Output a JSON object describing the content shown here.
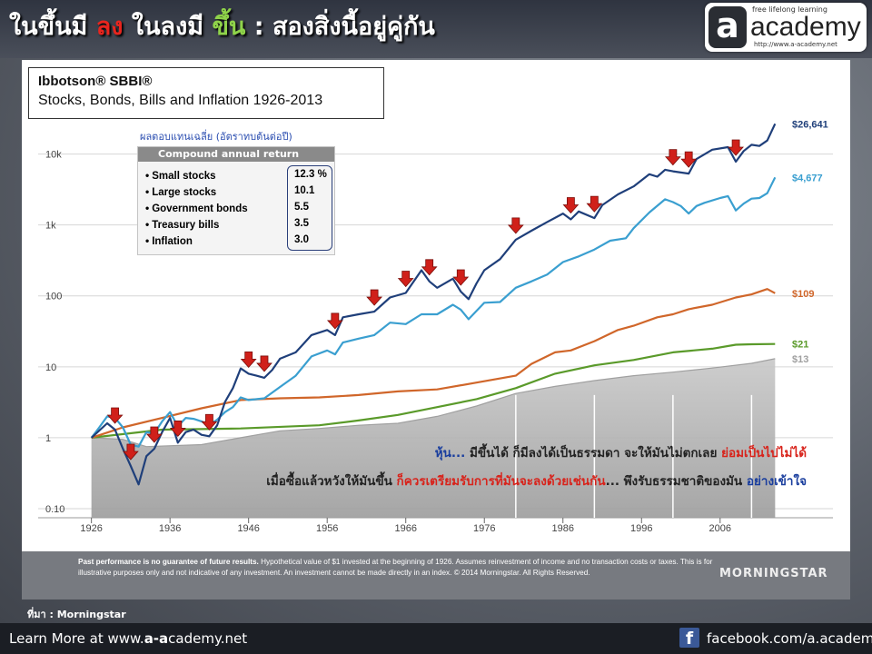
{
  "header": {
    "title_part1": "ในขึ้นมี ",
    "title_down": "ลง",
    "title_part2": " ในลงมี ",
    "title_up": "ขึ้น",
    "title_part3": " : สองสิ่งนี้อยู่คู่กัน"
  },
  "logo": {
    "letter": "a",
    "tagline": "free lifelong learning",
    "word": "academy",
    "url": "http://www.a-academy.net"
  },
  "chart_box": {
    "title": "Ibbotson® SBBI®",
    "subtitle": "Stocks, Bonds, Bills and Inflation 1926-2013"
  },
  "thai_note": "ผลตอบแทนเฉลี่ย (อัตราทบต้นต่อปี)",
  "legend": {
    "header": "Compound annual return",
    "items": [
      {
        "label": "Small stocks",
        "value": "12.3 %",
        "color": "#1f3f7a"
      },
      {
        "label": "Large stocks",
        "value": "10.1",
        "color": "#3a9fd0"
      },
      {
        "label": "Government bonds",
        "value": "5.5",
        "color": "#d0662a"
      },
      {
        "label": "Treasury bills",
        "value": "3.5",
        "color": "#5a9a2a"
      },
      {
        "label": "Inflation",
        "value": "3.0",
        "color": "#a0a0a0"
      }
    ]
  },
  "annotations": {
    "line1_a": "หุ้น... ",
    "line1_b": "มีขึ้นได้ ก็มีลงได้เป็นธรรมดา จะให้มันไม่ตกเลย ",
    "line1_c": "ย่อมเป็นไปไม่ได้",
    "line2_a": "เมื่อซื้อแล้วหวังให้มันขึ้น ",
    "line2_b": "ก็ควรเตรียมรับการที่มันจะลงด้วยเช่นกัน",
    "line2_c": "... พึงรับธรรมชาติของมัน ",
    "line2_d": "อย่างเข้าใจ"
  },
  "disclaimer": {
    "bold": "Past performance is no guarantee of future results.",
    "text": " Hypothetical value of $1 invested at the beginning of 1926. Assumes reinvestment of income and no transaction costs or taxes. This is for illustrative purposes only and not indicative of any investment. An investment cannot be made directly in an index. © 2014 Morningstar. All Rights Reserved."
  },
  "morningstar": "MORNINGSTAR",
  "source": "ที่มา : Morningstar",
  "footer": {
    "left_prefix": "Learn More at www.",
    "left_bold": "a-a",
    "left_suffix": "cademy.net",
    "right": "facebook.com/a.academy"
  },
  "chart_data": {
    "type": "line",
    "title": "Ibbotson® SBBI® Stocks, Bonds, Bills and Inflation 1926-2013",
    "xlabel": "",
    "ylabel": "",
    "y_scale": "log",
    "ylim": [
      0.1,
      50000
    ],
    "xlim": [
      1925,
      2014
    ],
    "y_ticks": [
      0.1,
      1,
      10,
      100,
      1000,
      10000
    ],
    "y_tick_labels": [
      "0.10",
      "1",
      "10",
      "100",
      "1k",
      "10k"
    ],
    "x_ticks": [
      1926,
      1936,
      1946,
      1956,
      1966,
      1976,
      1986,
      1996,
      2006
    ],
    "x_tick_labels": [
      "1926",
      "1936",
      "1946",
      "1956",
      "1966",
      "1976",
      "1986",
      "1996",
      "2006"
    ],
    "grid": true,
    "series": [
      {
        "name": "Small stocks",
        "color": "#1f3f7a",
        "end_label": "$26,641",
        "points": [
          [
            1926,
            1
          ],
          [
            1928,
            1.6
          ],
          [
            1929,
            1.3
          ],
          [
            1930,
            0.7
          ],
          [
            1931,
            0.4
          ],
          [
            1932,
            0.22
          ],
          [
            1933,
            0.55
          ],
          [
            1934,
            0.7
          ],
          [
            1935,
            1.2
          ],
          [
            1936,
            1.9
          ],
          [
            1937,
            0.85
          ],
          [
            1938,
            1.2
          ],
          [
            1939,
            1.3
          ],
          [
            1940,
            1.1
          ],
          [
            1941,
            1.05
          ],
          [
            1942,
            1.5
          ],
          [
            1943,
            3.2
          ],
          [
            1944,
            5.0
          ],
          [
            1945,
            9.5
          ],
          [
            1946,
            8.0
          ],
          [
            1947,
            7.5
          ],
          [
            1948,
            7.0
          ],
          [
            1949,
            9.0
          ],
          [
            1950,
            13
          ],
          [
            1952,
            16
          ],
          [
            1954,
            28
          ],
          [
            1956,
            33
          ],
          [
            1957,
            28
          ],
          [
            1958,
            50
          ],
          [
            1960,
            55
          ],
          [
            1962,
            60
          ],
          [
            1964,
            95
          ],
          [
            1966,
            110
          ],
          [
            1968,
            230
          ],
          [
            1969,
            160
          ],
          [
            1970,
            130
          ],
          [
            1972,
            175
          ],
          [
            1973,
            115
          ],
          [
            1974,
            90
          ],
          [
            1975,
            150
          ],
          [
            1976,
            230
          ],
          [
            1978,
            330
          ],
          [
            1980,
            620
          ],
          [
            1982,
            830
          ],
          [
            1984,
            1100
          ],
          [
            1986,
            1450
          ],
          [
            1987,
            1200
          ],
          [
            1988,
            1550
          ],
          [
            1990,
            1250
          ],
          [
            1991,
            1900
          ],
          [
            1993,
            2700
          ],
          [
            1995,
            3500
          ],
          [
            1997,
            5200
          ],
          [
            1998,
            4800
          ],
          [
            1999,
            6000
          ],
          [
            2000,
            5700
          ],
          [
            2002,
            5300
          ],
          [
            2003,
            8500
          ],
          [
            2005,
            11500
          ],
          [
            2007,
            12500
          ],
          [
            2008,
            7800
          ],
          [
            2009,
            11000
          ],
          [
            2010,
            13500
          ],
          [
            2011,
            13000
          ],
          [
            2012,
            15500
          ],
          [
            2013,
            26641
          ]
        ]
      },
      {
        "name": "Large stocks",
        "color": "#3a9fd0",
        "end_label": "$4,677",
        "points": [
          [
            1926,
            1
          ],
          [
            1927,
            1.4
          ],
          [
            1928,
            2.0
          ],
          [
            1929,
            1.9
          ],
          [
            1930,
            1.4
          ],
          [
            1931,
            0.8
          ],
          [
            1932,
            0.75
          ],
          [
            1933,
            1.2
          ],
          [
            1934,
            1.15
          ],
          [
            1935,
            1.7
          ],
          [
            1936,
            2.3
          ],
          [
            1937,
            1.45
          ],
          [
            1938,
            1.9
          ],
          [
            1939,
            1.85
          ],
          [
            1940,
            1.7
          ],
          [
            1941,
            1.5
          ],
          [
            1942,
            1.8
          ],
          [
            1943,
            2.3
          ],
          [
            1944,
            2.7
          ],
          [
            1945,
            3.7
          ],
          [
            1946,
            3.4
          ],
          [
            1948,
            3.6
          ],
          [
            1950,
            5.2
          ],
          [
            1952,
            7.5
          ],
          [
            1954,
            14
          ],
          [
            1956,
            17
          ],
          [
            1957,
            15
          ],
          [
            1958,
            22
          ],
          [
            1960,
            25
          ],
          [
            1962,
            28
          ],
          [
            1964,
            42
          ],
          [
            1966,
            40
          ],
          [
            1968,
            55
          ],
          [
            1970,
            55
          ],
          [
            1972,
            75
          ],
          [
            1973,
            64
          ],
          [
            1974,
            47
          ],
          [
            1976,
            80
          ],
          [
            1978,
            82
          ],
          [
            1980,
            130
          ],
          [
            1982,
            160
          ],
          [
            1984,
            200
          ],
          [
            1986,
            300
          ],
          [
            1988,
            360
          ],
          [
            1990,
            450
          ],
          [
            1992,
            600
          ],
          [
            1994,
            650
          ],
          [
            1995,
            900
          ],
          [
            1997,
            1500
          ],
          [
            1999,
            2300
          ],
          [
            2000,
            2100
          ],
          [
            2001,
            1850
          ],
          [
            2002,
            1450
          ],
          [
            2003,
            1850
          ],
          [
            2004,
            2050
          ],
          [
            2006,
            2400
          ],
          [
            2007,
            2550
          ],
          [
            2008,
            1600
          ],
          [
            2009,
            2000
          ],
          [
            2010,
            2350
          ],
          [
            2011,
            2400
          ],
          [
            2012,
            2800
          ],
          [
            2013,
            4677
          ]
        ]
      },
      {
        "name": "Government bonds",
        "color": "#d0662a",
        "end_label": "$109",
        "points": [
          [
            1926,
            1
          ],
          [
            1930,
            1.4
          ],
          [
            1935,
            1.9
          ],
          [
            1940,
            2.6
          ],
          [
            1945,
            3.4
          ],
          [
            1950,
            3.6
          ],
          [
            1955,
            3.7
          ],
          [
            1960,
            4.0
          ],
          [
            1965,
            4.5
          ],
          [
            1970,
            4.8
          ],
          [
            1975,
            6.0
          ],
          [
            1980,
            7.5
          ],
          [
            1982,
            11
          ],
          [
            1985,
            16
          ],
          [
            1987,
            17
          ],
          [
            1990,
            23
          ],
          [
            1993,
            33
          ],
          [
            1995,
            38
          ],
          [
            1998,
            50
          ],
          [
            2000,
            55
          ],
          [
            2002,
            65
          ],
          [
            2005,
            75
          ],
          [
            2008,
            95
          ],
          [
            2010,
            105
          ],
          [
            2012,
            125
          ],
          [
            2013,
            109
          ]
        ]
      },
      {
        "name": "Treasury bills",
        "color": "#5a9a2a",
        "end_label": "$21",
        "points": [
          [
            1926,
            1
          ],
          [
            1935,
            1.3
          ],
          [
            1945,
            1.35
          ],
          [
            1955,
            1.5
          ],
          [
            1960,
            1.75
          ],
          [
            1965,
            2.1
          ],
          [
            1970,
            2.7
          ],
          [
            1975,
            3.5
          ],
          [
            1980,
            5.0
          ],
          [
            1985,
            8.0
          ],
          [
            1990,
            10.5
          ],
          [
            1995,
            12.5
          ],
          [
            2000,
            16
          ],
          [
            2005,
            18
          ],
          [
            2008,
            20.5
          ],
          [
            2010,
            20.8
          ],
          [
            2013,
            21
          ]
        ]
      },
      {
        "name": "Inflation",
        "color": "#a0a0a0",
        "end_label": "$13",
        "points": [
          [
            1926,
            1
          ],
          [
            1930,
            0.95
          ],
          [
            1933,
            0.75
          ],
          [
            1940,
            0.8
          ],
          [
            1945,
            1.0
          ],
          [
            1950,
            1.25
          ],
          [
            1955,
            1.35
          ],
          [
            1960,
            1.5
          ],
          [
            1965,
            1.6
          ],
          [
            1970,
            2.0
          ],
          [
            1975,
            2.8
          ],
          [
            1980,
            4.2
          ],
          [
            1985,
            5.3
          ],
          [
            1990,
            6.4
          ],
          [
            1995,
            7.5
          ],
          [
            2000,
            8.4
          ],
          [
            2005,
            9.6
          ],
          [
            2010,
            11.2
          ],
          [
            2013,
            13
          ]
        ]
      }
    ],
    "drawdown_markers": [
      1929,
      1931,
      1934,
      1937,
      1941,
      1946,
      1948,
      1957,
      1962,
      1966,
      1969,
      1973,
      1980,
      1987,
      1990,
      2000,
      2002,
      2008
    ]
  }
}
